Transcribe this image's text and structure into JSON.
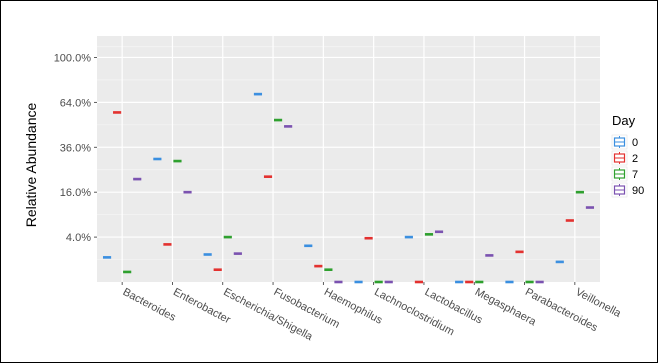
{
  "chart_data": {
    "type": "boxplot",
    "ylabel": "Relative Abundance",
    "y_scale": "sqrt",
    "y_ticks": [
      4,
      16,
      36,
      64,
      100
    ],
    "y_tick_labels": [
      "4.0%",
      "16.0%",
      "36.0%",
      "64.0%",
      "100.0%"
    ],
    "ylim": [
      0,
      120
    ],
    "grid": true,
    "categories": [
      "Bacteroides",
      "Enterobacter",
      "Escherichia/Shigella",
      "Fusobacterium",
      "Haemophilus",
      "Lachnoclostridium",
      "Lactobacillus",
      "Megasphaera",
      "Parabacteroides",
      "Veillonella"
    ],
    "legend": {
      "title": "Day",
      "position": "right"
    },
    "series": [
      {
        "name": "0",
        "color": "#3b8fe0",
        "values": [
          1.2,
          30.0,
          1.5,
          70.0,
          2.6,
          0.0,
          4.0,
          0.0,
          0.0,
          0.8
        ]
      },
      {
        "name": "2",
        "color": "#e3312f",
        "values": [
          57.0,
          2.8,
          0.3,
          22.0,
          0.5,
          3.8,
          0.0,
          0.0,
          1.8,
          7.5
        ]
      },
      {
        "name": "7",
        "color": "#2ea02e",
        "values": [
          0.2,
          29.0,
          4.0,
          52.0,
          0.3,
          0.0,
          4.5,
          0.0,
          0.0,
          16.0
        ]
      },
      {
        "name": "90",
        "color": "#7b52b0",
        "values": [
          21.0,
          16.0,
          1.6,
          48.0,
          0.0,
          0.0,
          5.0,
          1.4,
          0.0,
          11.0
        ]
      }
    ]
  }
}
